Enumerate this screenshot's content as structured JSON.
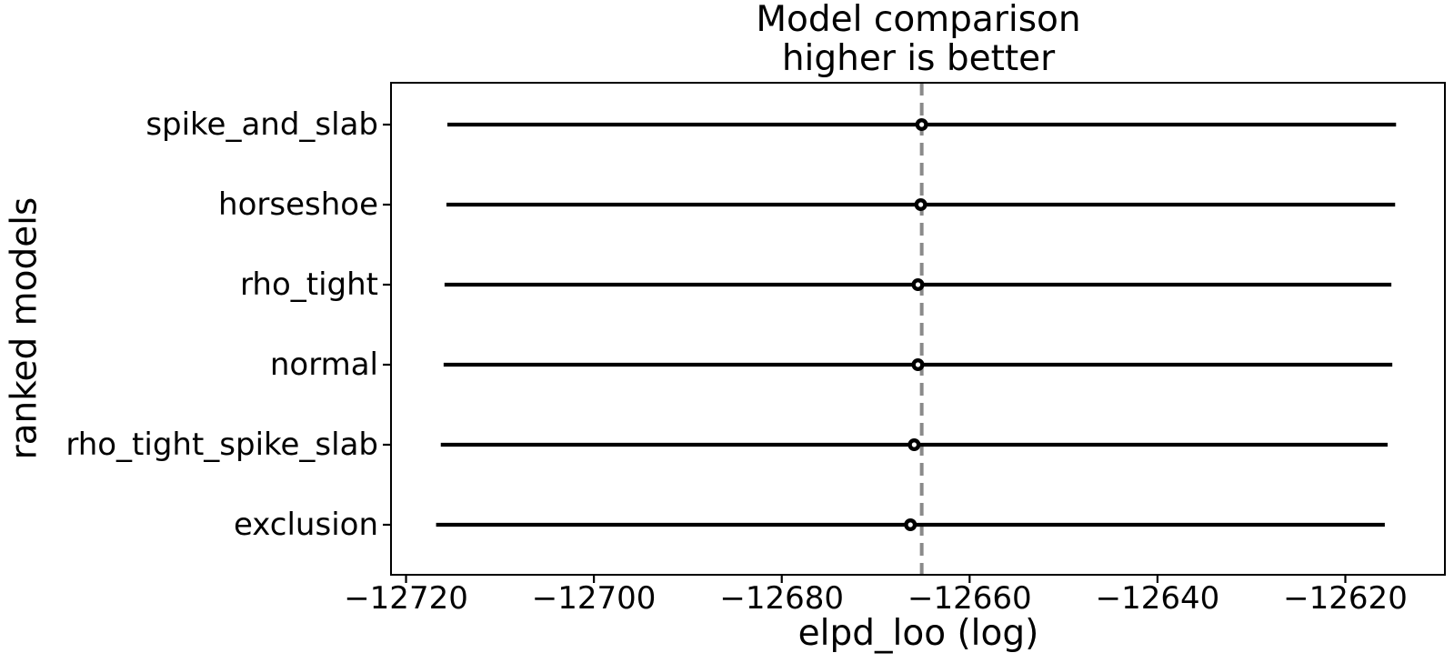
{
  "figure": {
    "title_line1": "Model comparison",
    "title_line2": "higher is better",
    "xlabel": "elpd_loo (log)",
    "ylabel": "ranked models"
  },
  "chart_data": {
    "type": "scatter",
    "subtype": "horizontal-errorbar-model-comparison",
    "title": "Model comparison\nhigher is better",
    "xlabel": "elpd_loo (log)",
    "ylabel": "ranked models",
    "categories": [
      "spike_and_slab",
      "horseshoe",
      "rho_tight",
      "normal",
      "rho_tight_spike_slab",
      "exclusion"
    ],
    "series": [
      {
        "name": "elpd_loo",
        "values": [
          -12665.1,
          -12665.2,
          -12665.5,
          -12665.5,
          -12665.9,
          -12666.3
        ],
        "error_minus": [
          50.5,
          50.5,
          50.4,
          50.5,
          50.4,
          50.5
        ],
        "error_plus": [
          50.5,
          50.5,
          50.4,
          50.5,
          50.4,
          50.5
        ]
      }
    ],
    "vline_x": -12665.1,
    "xlim": [
      -12721.6,
      -12609.4
    ],
    "xticks": [
      -12720,
      -12700,
      -12680,
      -12660,
      -12640,
      -12620
    ],
    "xtick_labels": [
      "−12720",
      "−12700",
      "−12680",
      "−12660",
      "−12640",
      "−12620"
    ],
    "grid": false,
    "legend_position": "none",
    "colors": {
      "errorbar": "#000000",
      "marker_fill": "#ffffff",
      "marker_edge": "#000000",
      "vline": "#8a8a8a",
      "spine": "#000000",
      "text": "#000000",
      "background": "#ffffff"
    }
  }
}
